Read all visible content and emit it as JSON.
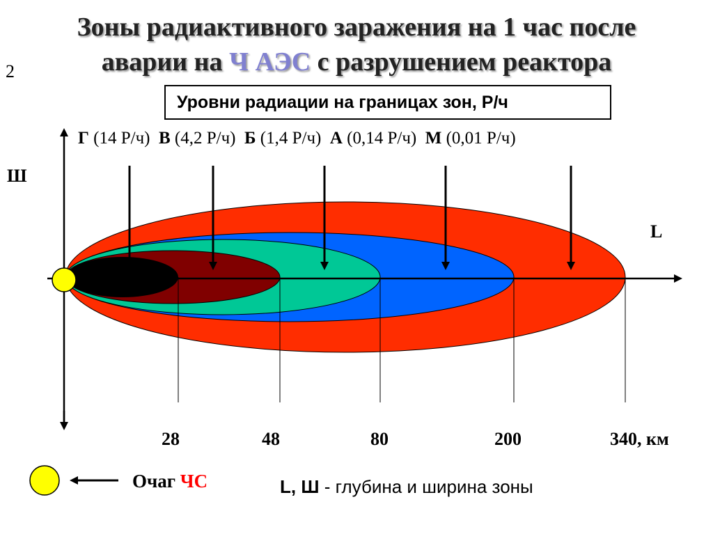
{
  "title": {
    "line1": "Зоны радиактивного заражения на 1 час после",
    "line2_pre": "аварии на ",
    "line2_hl": "Ч АЭС",
    "line2_post": " с разрушением реактора"
  },
  "slide_number": "2",
  "levels_box": "Уровни радиации на границах зон, Р/ч",
  "zones": [
    {
      "letter": "Г",
      "level": "(14 Р/ч)",
      "color": "#000000"
    },
    {
      "letter": "В",
      "level": "(4,2 Р/ч)",
      "color": "#800000"
    },
    {
      "letter": "Б",
      "level": "(1,4 Р/ч)",
      "color": "#00c896"
    },
    {
      "letter": "А",
      "level": "(0,14 Р/ч)",
      "color": "#0064ff"
    },
    {
      "letter": "М",
      "level": "(0,01 Р/ч)",
      "color": "#ff2d00"
    }
  ],
  "axis": {
    "y_label": "Ш",
    "x_label": "L",
    "ticks": [
      "28",
      "48",
      "80",
      "200",
      "340, км"
    ]
  },
  "legend": {
    "focus_pre": "Очаг ",
    "focus_hl": "ЧС",
    "desc_bold": "L, Ш",
    "desc_rest": " - глубина и ширина зоны"
  },
  "colors": {
    "focus": "#ffff00",
    "highlight": "#8080d0",
    "red_text": "#ff0000"
  }
}
